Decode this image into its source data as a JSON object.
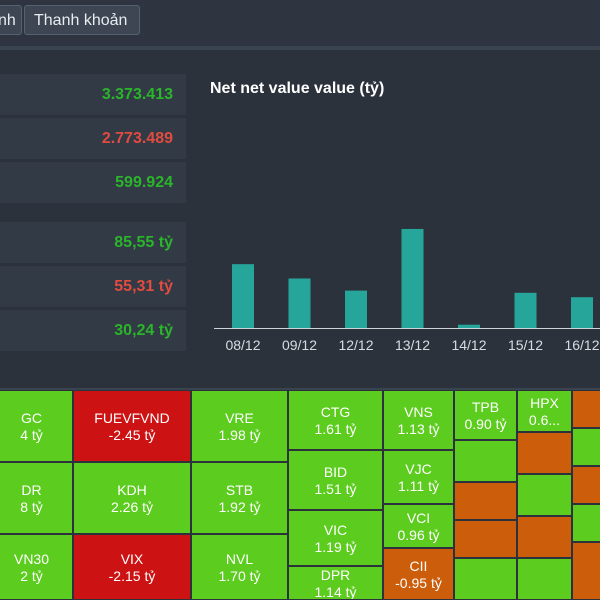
{
  "tabs": [
    {
      "label": "nh"
    },
    {
      "label": "Thanh khoản"
    }
  ],
  "stats": [
    {
      "value": "3.373.413",
      "color": "green"
    },
    {
      "value": "2.773.489",
      "color": "red"
    },
    {
      "value": "599.924",
      "color": "green"
    },
    {
      "value": "85,55 tỷ",
      "color": "green"
    },
    {
      "value": "55,31 tỷ",
      "color": "red"
    },
    {
      "value": "30,24 tỷ",
      "color": "green"
    }
  ],
  "chart_data": {
    "type": "bar",
    "title": "Net net value value (tỷ)",
    "categories": [
      "08/12",
      "09/12",
      "12/12",
      "13/12",
      "14/12",
      "15/12",
      "16/12"
    ],
    "values": [
      58,
      45,
      34,
      90,
      3,
      32,
      28
    ],
    "ylim": [
      0,
      100
    ],
    "bar_color": "#26a69a",
    "grid": false
  },
  "heatmap": {
    "colors": {
      "green": "#5ccc1f",
      "red": "#cc1212",
      "orange": "#cc5d0a"
    },
    "cells": [
      {
        "ticker": "GC",
        "value": "4 tỷ",
        "color": "green"
      },
      {
        "ticker": "FUEVFVND",
        "value": "-2.45 tỷ",
        "color": "red"
      },
      {
        "ticker": "VRE",
        "value": "1.98 tỷ",
        "color": "green"
      },
      {
        "ticker": "CTG",
        "value": "1.61 tỷ",
        "color": "green"
      },
      {
        "ticker": "VNS",
        "value": "1.13 tỷ",
        "color": "green"
      },
      {
        "ticker": "TPB",
        "value": "0.90 tỷ",
        "color": "green"
      },
      {
        "ticker": "HPX",
        "value": "0.6...",
        "color": "green"
      },
      {
        "ticker": "DR",
        "value": "8 tỷ",
        "color": "green"
      },
      {
        "ticker": "KDH",
        "value": "2.26 tỷ",
        "color": "green"
      },
      {
        "ticker": "STB",
        "value": "1.92 tỷ",
        "color": "green"
      },
      {
        "ticker": "BID",
        "value": "1.51 tỷ",
        "color": "green"
      },
      {
        "ticker": "VJC",
        "value": "1.11 tỷ",
        "color": "green"
      },
      {
        "ticker": "VN30",
        "value": "2 tỷ",
        "color": "green"
      },
      {
        "ticker": "VIX",
        "value": "-2.15 tỷ",
        "color": "red"
      },
      {
        "ticker": "NVL",
        "value": "1.70 tỷ",
        "color": "green"
      },
      {
        "ticker": "VIC",
        "value": "1.19 tỷ",
        "color": "green"
      },
      {
        "ticker": "VCI",
        "value": "0.96 tỷ",
        "color": "green"
      },
      {
        "ticker": "DPR",
        "value": "1.14 tỷ",
        "color": "green"
      },
      {
        "ticker": "CII",
        "value": "-0.95 tỷ",
        "color": "orange"
      }
    ],
    "blank_tiles": [
      {
        "color": "green"
      },
      {
        "color": "orange"
      },
      {
        "color": "orange"
      },
      {
        "color": "green"
      },
      {
        "color": "orange"
      },
      {
        "color": "green"
      },
      {
        "color": "orange"
      },
      {
        "color": "green"
      },
      {
        "color": "orange"
      },
      {
        "color": "green"
      },
      {
        "color": "orange"
      },
      {
        "color": "green"
      },
      {
        "color": "orange"
      }
    ]
  }
}
